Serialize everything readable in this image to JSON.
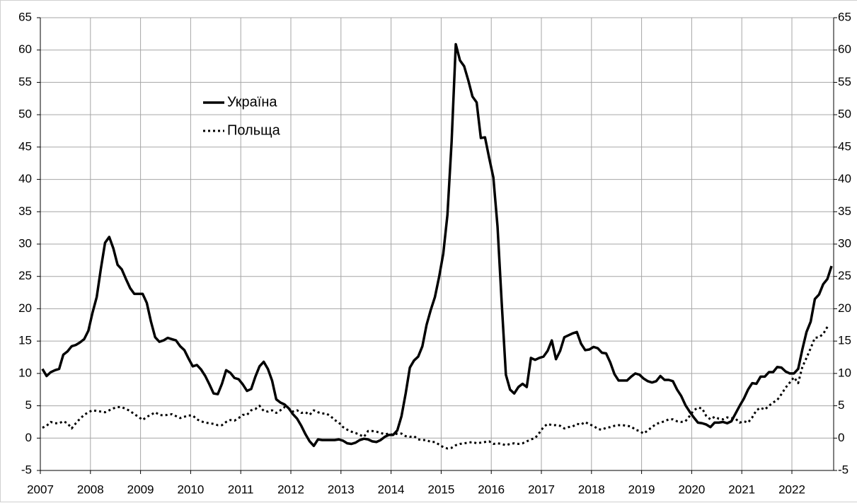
{
  "chart_data": {
    "type": "line",
    "categories": [
      "2007",
      null,
      null,
      null,
      null,
      null,
      null,
      null,
      null,
      null,
      null,
      null,
      "2008",
      null,
      null,
      null,
      null,
      null,
      null,
      null,
      null,
      null,
      null,
      null,
      "2009",
      null,
      null,
      null,
      null,
      null,
      null,
      null,
      null,
      null,
      null,
      null,
      "2010",
      null,
      null,
      null,
      null,
      null,
      null,
      null,
      null,
      null,
      null,
      null,
      "2011",
      null,
      null,
      null,
      null,
      null,
      null,
      null,
      null,
      null,
      null,
      null,
      "2012",
      null,
      null,
      null,
      null,
      null,
      null,
      null,
      null,
      null,
      null,
      null,
      "2013",
      null,
      null,
      null,
      null,
      null,
      null,
      null,
      null,
      null,
      null,
      null,
      "2014",
      null,
      null,
      null,
      null,
      null,
      null,
      null,
      null,
      null,
      null,
      null,
      "2015",
      null,
      null,
      null,
      null,
      null,
      null,
      null,
      null,
      null,
      null,
      null,
      "2016",
      null,
      null,
      null,
      null,
      null,
      null,
      null,
      null,
      null,
      null,
      null,
      "2017",
      null,
      null,
      null,
      null,
      null,
      null,
      null,
      null,
      null,
      null,
      null,
      "2018",
      null,
      null,
      null,
      null,
      null,
      null,
      null,
      null,
      null,
      null,
      null,
      "2019",
      null,
      null,
      null,
      null,
      null,
      null,
      null,
      null,
      null,
      null,
      null,
      "2020",
      null,
      null,
      null,
      null,
      null,
      null,
      null,
      null,
      null,
      null,
      null,
      "2021",
      null,
      null,
      null,
      null,
      null,
      null,
      null,
      null,
      null,
      null,
      null,
      "2022",
      null,
      null,
      null,
      null,
      null,
      null,
      null,
      null,
      null
    ],
    "series": [
      {
        "name": "Україна",
        "color": "#000000",
        "dash": "solid",
        "values": [
          10.7,
          9.6,
          10.2,
          10.5,
          10.7,
          12.9,
          13.4,
          14.2,
          14.4,
          14.8,
          15.3,
          16.6,
          19.4,
          21.8,
          26.2,
          30.2,
          31.1,
          29.3,
          26.8,
          26.1,
          24.6,
          23.2,
          22.3,
          22.3,
          22.3,
          20.9,
          18.0,
          15.6,
          14.9,
          15.1,
          15.5,
          15.3,
          15.1,
          14.2,
          13.6,
          12.3,
          11.1,
          11.3,
          10.6,
          9.6,
          8.3,
          6.9,
          6.8,
          8.4,
          10.5,
          10.1,
          9.3,
          9.1,
          8.3,
          7.3,
          7.6,
          9.5,
          11.1,
          11.8,
          10.7,
          8.9,
          6.0,
          5.5,
          5.2,
          4.6,
          3.7,
          3.0,
          1.9,
          0.6,
          -0.5,
          -1.2,
          -0.2,
          -0.3,
          -0.3,
          -0.3,
          -0.3,
          -0.2,
          -0.4,
          -0.8,
          -0.9,
          -0.7,
          -0.3,
          -0.1,
          -0.2,
          -0.5,
          -0.6,
          -0.3,
          0.2,
          0.5,
          0.5,
          1.2,
          3.4,
          6.9,
          10.9,
          12.0,
          12.6,
          14.2,
          17.5,
          19.8,
          21.8,
          24.9,
          28.5,
          34.5,
          45.8,
          60.9,
          58.4,
          57.5,
          55.3,
          52.8,
          51.9,
          46.4,
          46.5,
          43.3,
          40.3,
          32.7,
          20.9,
          9.8,
          7.5,
          6.9,
          7.9,
          8.4,
          7.9,
          12.4,
          12.1,
          12.4,
          12.6,
          13.5,
          15.1,
          12.2,
          13.5,
          15.6,
          15.9,
          16.2,
          16.4,
          14.6,
          13.6,
          13.7,
          14.1,
          13.9,
          13.2,
          13.1,
          11.7,
          9.9,
          8.9,
          8.9,
          8.9,
          9.5,
          10.0,
          9.8,
          9.2,
          8.8,
          8.6,
          8.8,
          9.6,
          9.0,
          9.0,
          8.8,
          7.5,
          6.5,
          5.1,
          4.1,
          3.2,
          2.4,
          2.3,
          2.1,
          1.7,
          2.4,
          2.4,
          2.5,
          2.3,
          2.6,
          3.8,
          5.0,
          6.1,
          7.5,
          8.5,
          8.4,
          9.5,
          9.5,
          10.2,
          10.2,
          11.0,
          10.9,
          10.3,
          10.0,
          10.0,
          10.7,
          13.7,
          16.4,
          18.0,
          21.5,
          22.2,
          23.8,
          24.6,
          26.6
        ]
      },
      {
        "name": "Польща",
        "color": "#000000",
        "dash": "dotted",
        "values": [
          1.6,
          1.9,
          2.5,
          2.3,
          2.3,
          2.6,
          2.3,
          1.5,
          2.3,
          3.0,
          3.6,
          4.0,
          4.3,
          4.2,
          4.1,
          4.0,
          4.3,
          4.6,
          4.8,
          4.8,
          4.5,
          4.2,
          3.7,
          3.3,
          2.8,
          3.3,
          3.6,
          4.0,
          3.6,
          3.5,
          3.6,
          3.7,
          3.4,
          3.1,
          3.3,
          3.5,
          3.5,
          2.9,
          2.6,
          2.4,
          2.3,
          2.2,
          2.0,
          2.0,
          2.5,
          2.8,
          2.7,
          3.1,
          3.6,
          3.6,
          4.3,
          4.5,
          5.0,
          4.2,
          4.1,
          4.3,
          3.9,
          4.3,
          4.8,
          4.6,
          4.1,
          4.3,
          3.9,
          4.0,
          3.6,
          4.3,
          4.0,
          3.8,
          3.8,
          3.4,
          2.8,
          2.4,
          1.7,
          1.3,
          1.0,
          0.8,
          0.5,
          0.2,
          1.1,
          1.1,
          1.0,
          0.8,
          0.6,
          0.7,
          0.5,
          0.7,
          0.7,
          0.3,
          0.2,
          0.3,
          -0.2,
          -0.3,
          -0.3,
          -0.6,
          -0.6,
          -1.0,
          -1.4,
          -1.6,
          -1.5,
          -1.1,
          -0.9,
          -0.8,
          -0.7,
          -0.6,
          -0.8,
          -0.7,
          -0.6,
          -0.5,
          -0.9,
          -0.8,
          -0.9,
          -1.1,
          -0.9,
          -0.8,
          -0.9,
          -0.8,
          -0.5,
          -0.2,
          0.0,
          0.8,
          1.7,
          2.2,
          2.0,
          2.0,
          1.9,
          1.5,
          1.7,
          1.8,
          2.2,
          2.1,
          2.5,
          2.1,
          1.9,
          1.4,
          1.3,
          1.6,
          1.7,
          1.9,
          2.0,
          2.0,
          1.9,
          1.8,
          1.3,
          1.1,
          0.7,
          1.2,
          1.7,
          2.2,
          2.4,
          2.6,
          2.9,
          2.9,
          2.6,
          2.5,
          2.6,
          3.4,
          4.3,
          4.7,
          4.6,
          3.4,
          2.9,
          3.3,
          3.0,
          2.9,
          3.2,
          3.1,
          3.0,
          2.4,
          2.6,
          2.4,
          3.2,
          4.3,
          4.7,
          4.4,
          5.0,
          5.5,
          5.9,
          6.8,
          7.8,
          8.6,
          9.4,
          8.5,
          11.0,
          12.4,
          13.9,
          15.5,
          15.6,
          16.1,
          17.2,
          null
        ]
      }
    ],
    "ylim": [
      -5,
      65
    ],
    "yticks": [
      -5,
      0,
      5,
      10,
      15,
      20,
      25,
      30,
      35,
      40,
      45,
      50,
      55,
      60,
      65
    ],
    "y2lim": [
      -5,
      65
    ],
    "y2ticks": [
      -5,
      0,
      5,
      10,
      15,
      20,
      25,
      30,
      35,
      40,
      45,
      50,
      55,
      60,
      65
    ],
    "grid": true,
    "legend": "upper left"
  }
}
